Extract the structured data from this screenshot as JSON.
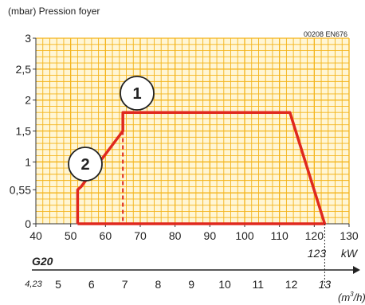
{
  "chart_data": {
    "type": "line",
    "ylabel": "(mbar) Pression foyer",
    "reference": "00208 EN676",
    "x_axis": {
      "unit": "kW",
      "min": 40,
      "max": 130,
      "ticks": [
        "40",
        "50",
        "60",
        "70",
        "80",
        "90",
        "100",
        "110",
        "120",
        "130"
      ],
      "extra_label": "123",
      "extra_value": 123
    },
    "y_axis": {
      "min": 0,
      "max": 3,
      "ticks": [
        {
          "value": 0,
          "label": "0"
        },
        {
          "value": 0.55,
          "label": "0,55"
        },
        {
          "value": 1,
          "label": "1"
        },
        {
          "value": 1.5,
          "label": "1,5"
        },
        {
          "value": 2,
          "label": "2"
        },
        {
          "value": 2.5,
          "label": "2,5"
        },
        {
          "value": 3,
          "label": "3"
        }
      ]
    },
    "grid": true,
    "gas_label": "G20",
    "flow_axis": {
      "unit_pre": "(m",
      "unit_sup": "3",
      "unit_post": "/h)",
      "start_label": "4,23",
      "labels": [
        "5",
        "6",
        "7",
        "8",
        "9",
        "10",
        "11",
        "12"
      ],
      "end_label": "13"
    },
    "series": [
      {
        "points": [
          [
            52,
            0
          ],
          [
            52,
            0.55
          ],
          [
            53,
            0.6
          ],
          [
            65,
            1.5
          ],
          [
            65,
            1.8
          ],
          [
            73,
            1.8
          ],
          [
            113,
            1.8
          ],
          [
            123,
            0
          ],
          [
            52,
            0
          ]
        ]
      }
    ],
    "dashed_line": {
      "x": 65,
      "y0": 0,
      "y1": 1.5
    },
    "annotations": [
      {
        "label": "1",
        "target": [
          65,
          1.8
        ]
      },
      {
        "label": "2",
        "target": [
          53,
          0.6
        ]
      }
    ]
  }
}
